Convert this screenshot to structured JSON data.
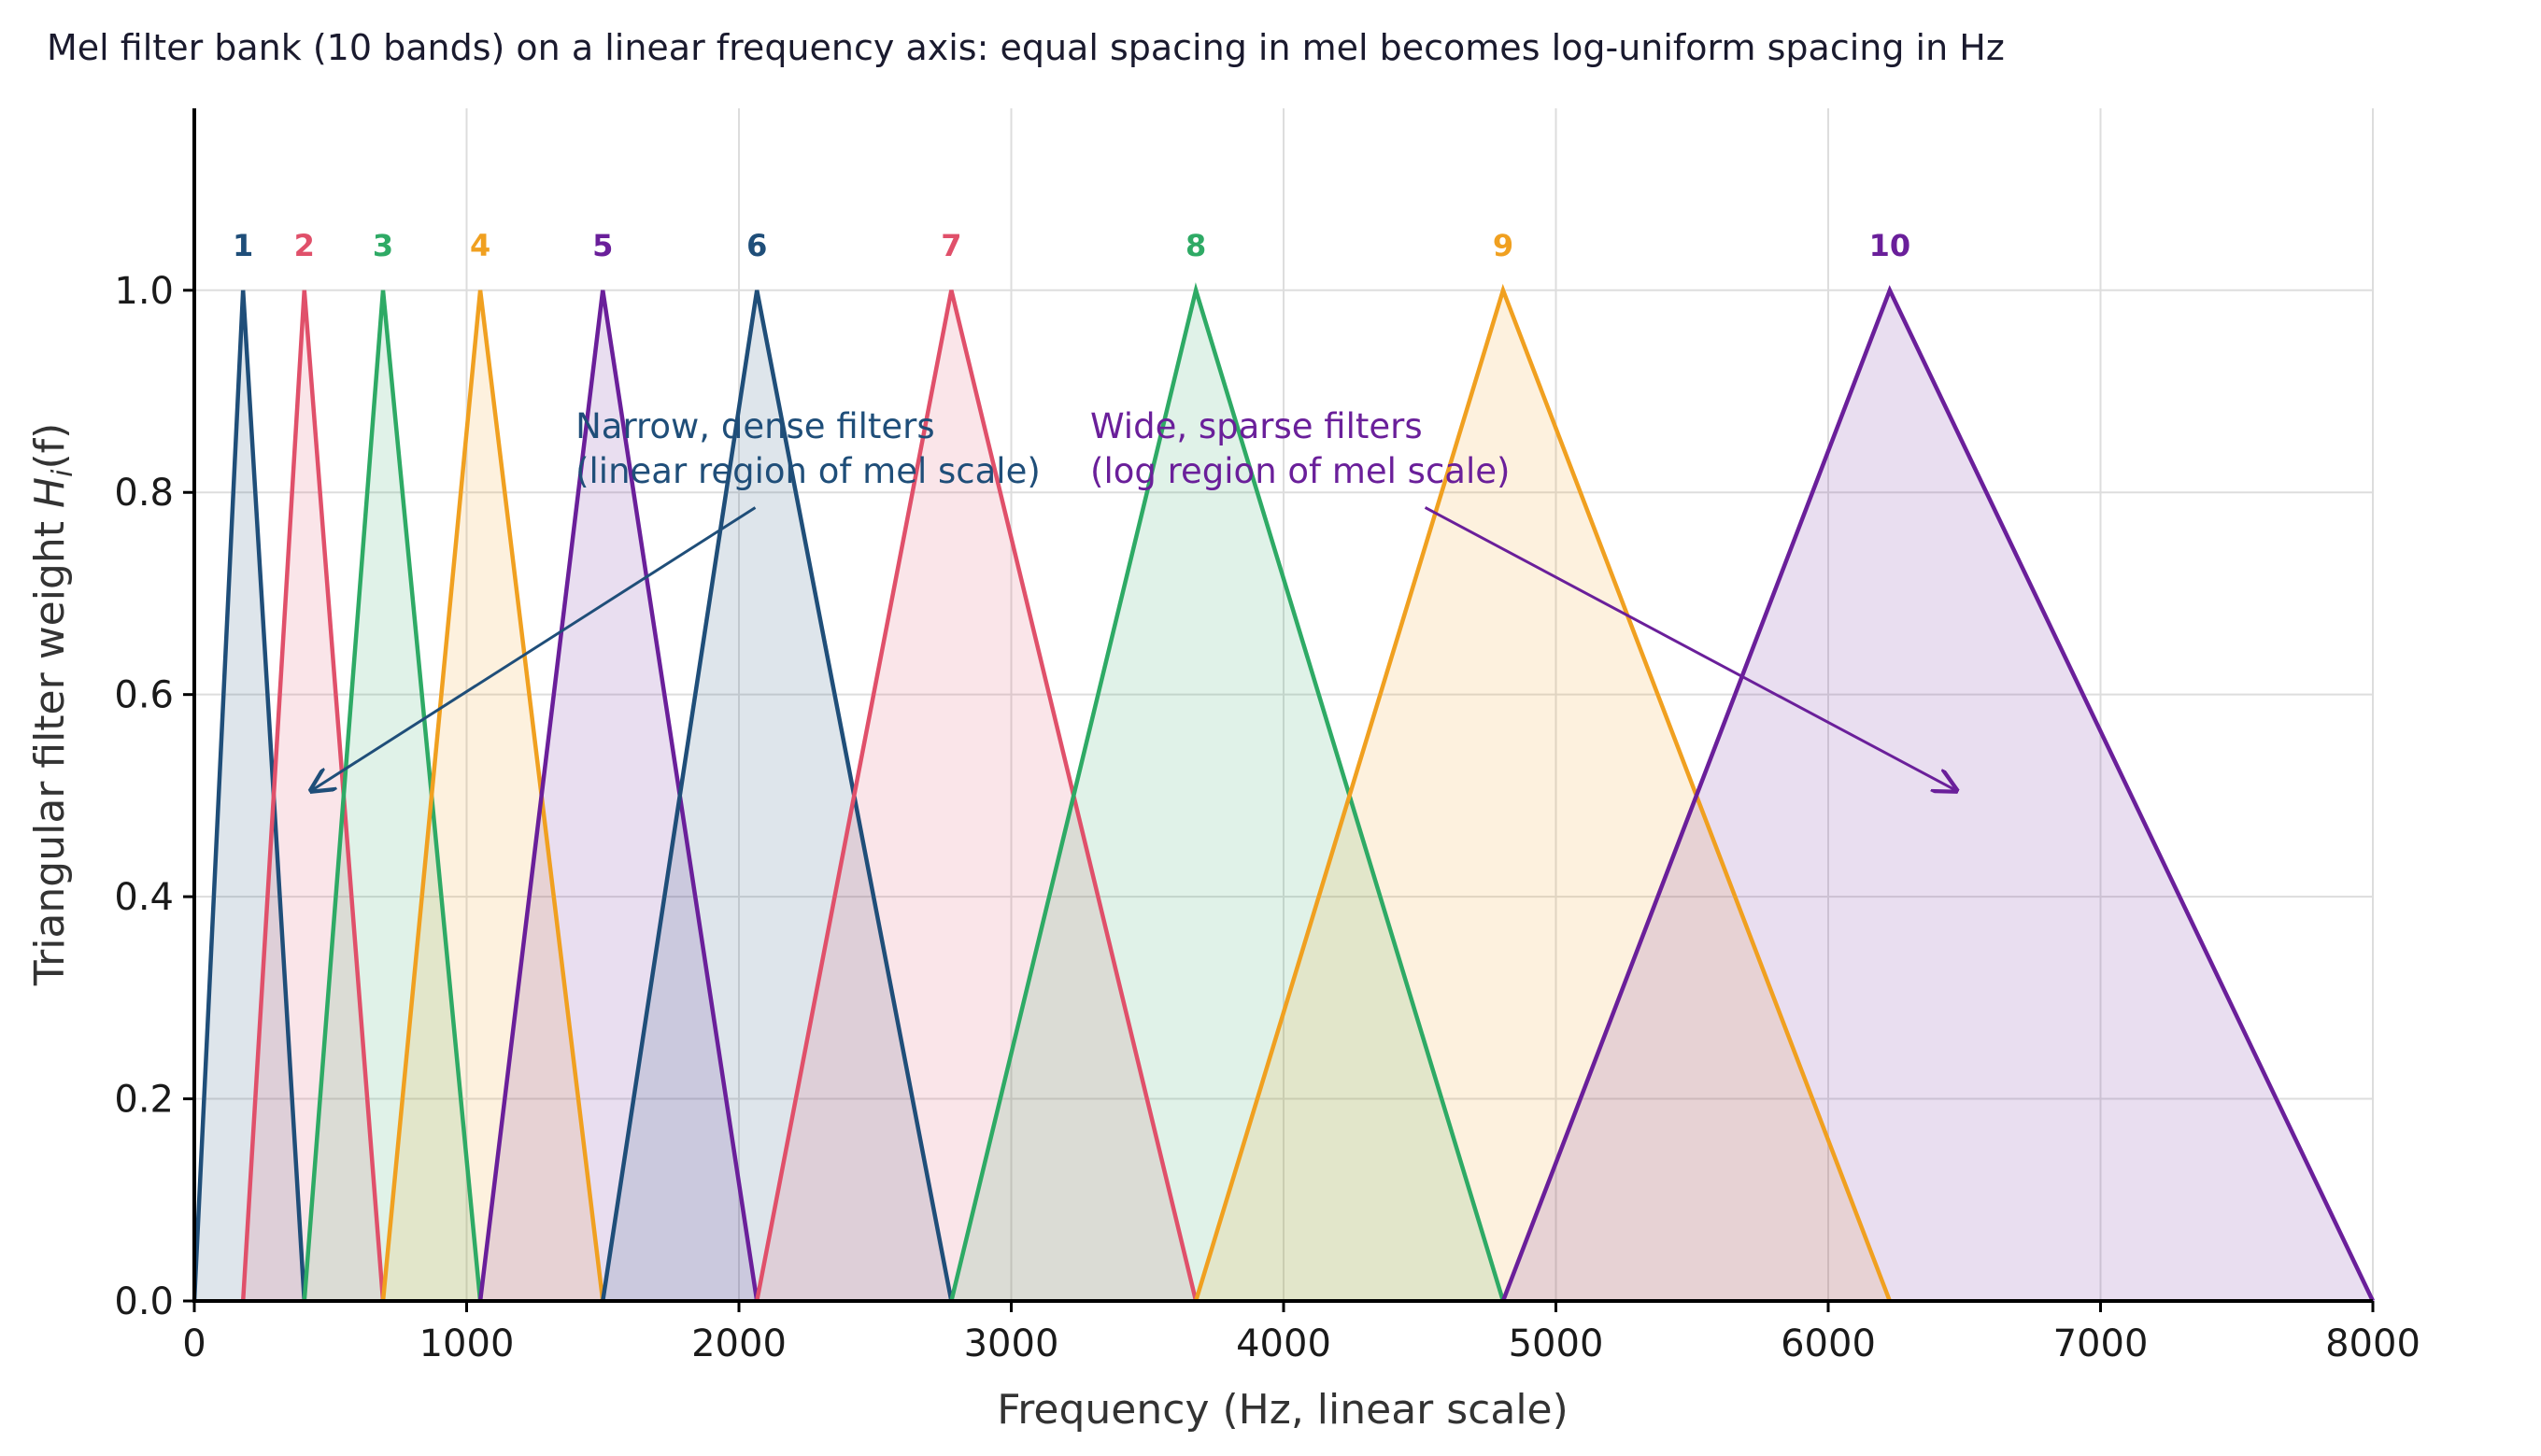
{
  "chart_data": {
    "type": "area",
    "title": "Mel filter bank (10 bands) on a linear frequency axis: equal spacing in mel becomes log-uniform spacing in Hz",
    "xlabel": "Frequency (Hz, linear scale)",
    "ylabel_prefix": "Triangular filter weight ",
    "ylabel_symbol": "H",
    "ylabel_subscript": "i",
    "ylabel_suffix": "(f)",
    "xlim": [
      0,
      8000
    ],
    "ylim": [
      0,
      1.18
    ],
    "xticks": [
      0,
      1000,
      2000,
      3000,
      4000,
      5000,
      6000,
      7000,
      8000
    ],
    "yticks": [
      0.0,
      0.2,
      0.4,
      0.6,
      0.8,
      1.0
    ],
    "xtick_labels": [
      "0",
      "1000",
      "2000",
      "3000",
      "4000",
      "5000",
      "6000",
      "7000",
      "8000"
    ],
    "ytick_labels": [
      "0.0",
      "0.2",
      "0.4",
      "0.6",
      "0.8",
      "1.0"
    ],
    "grid": true,
    "mel_points_hz": [
      0,
      179,
      404,
      693,
      1050,
      1500,
      2066,
      2780,
      3678,
      4806,
      6226,
      8000
    ],
    "filters": [
      {
        "label": "1",
        "left": 0,
        "center": 179,
        "right": 404,
        "color": "#1f4e79"
      },
      {
        "label": "2",
        "left": 179,
        "center": 404,
        "right": 693,
        "color": "#e0506a"
      },
      {
        "label": "3",
        "left": 404,
        "center": 693,
        "right": 1050,
        "color": "#2eaa65"
      },
      {
        "label": "4",
        "left": 693,
        "center": 1050,
        "right": 1500,
        "color": "#f0a020"
      },
      {
        "label": "5",
        "left": 1050,
        "center": 1500,
        "right": 2066,
        "color": "#6a1f9a"
      },
      {
        "label": "6",
        "left": 1500,
        "center": 2066,
        "right": 2780,
        "color": "#1f4e79"
      },
      {
        "label": "7",
        "left": 2066,
        "center": 2780,
        "right": 3678,
        "color": "#e0506a"
      },
      {
        "label": "8",
        "left": 2780,
        "center": 3678,
        "right": 4806,
        "color": "#2eaa65"
      },
      {
        "label": "9",
        "left": 3678,
        "center": 4806,
        "right": 6226,
        "color": "#f0a020"
      },
      {
        "label": "10",
        "left": 4806,
        "center": 6226,
        "right": 8000,
        "color": "#6a1f9a"
      }
    ],
    "annotations": [
      {
        "lines": [
          "Narrow, dense filters",
          "(linear region of mel scale)"
        ],
        "text_x": 1400,
        "text_y": 0.85,
        "arrow_from": [
          2060,
          0.785
        ],
        "arrow_to": [
          430,
          0.505
        ],
        "color": "#1f4e79"
      },
      {
        "lines": [
          "Wide, sparse filters",
          "(log region of mel scale)"
        ],
        "text_x": 3290,
        "text_y": 0.85,
        "arrow_from": [
          4520,
          0.785
        ],
        "arrow_to": [
          6470,
          0.505
        ],
        "color": "#6a1f9a"
      }
    ]
  }
}
